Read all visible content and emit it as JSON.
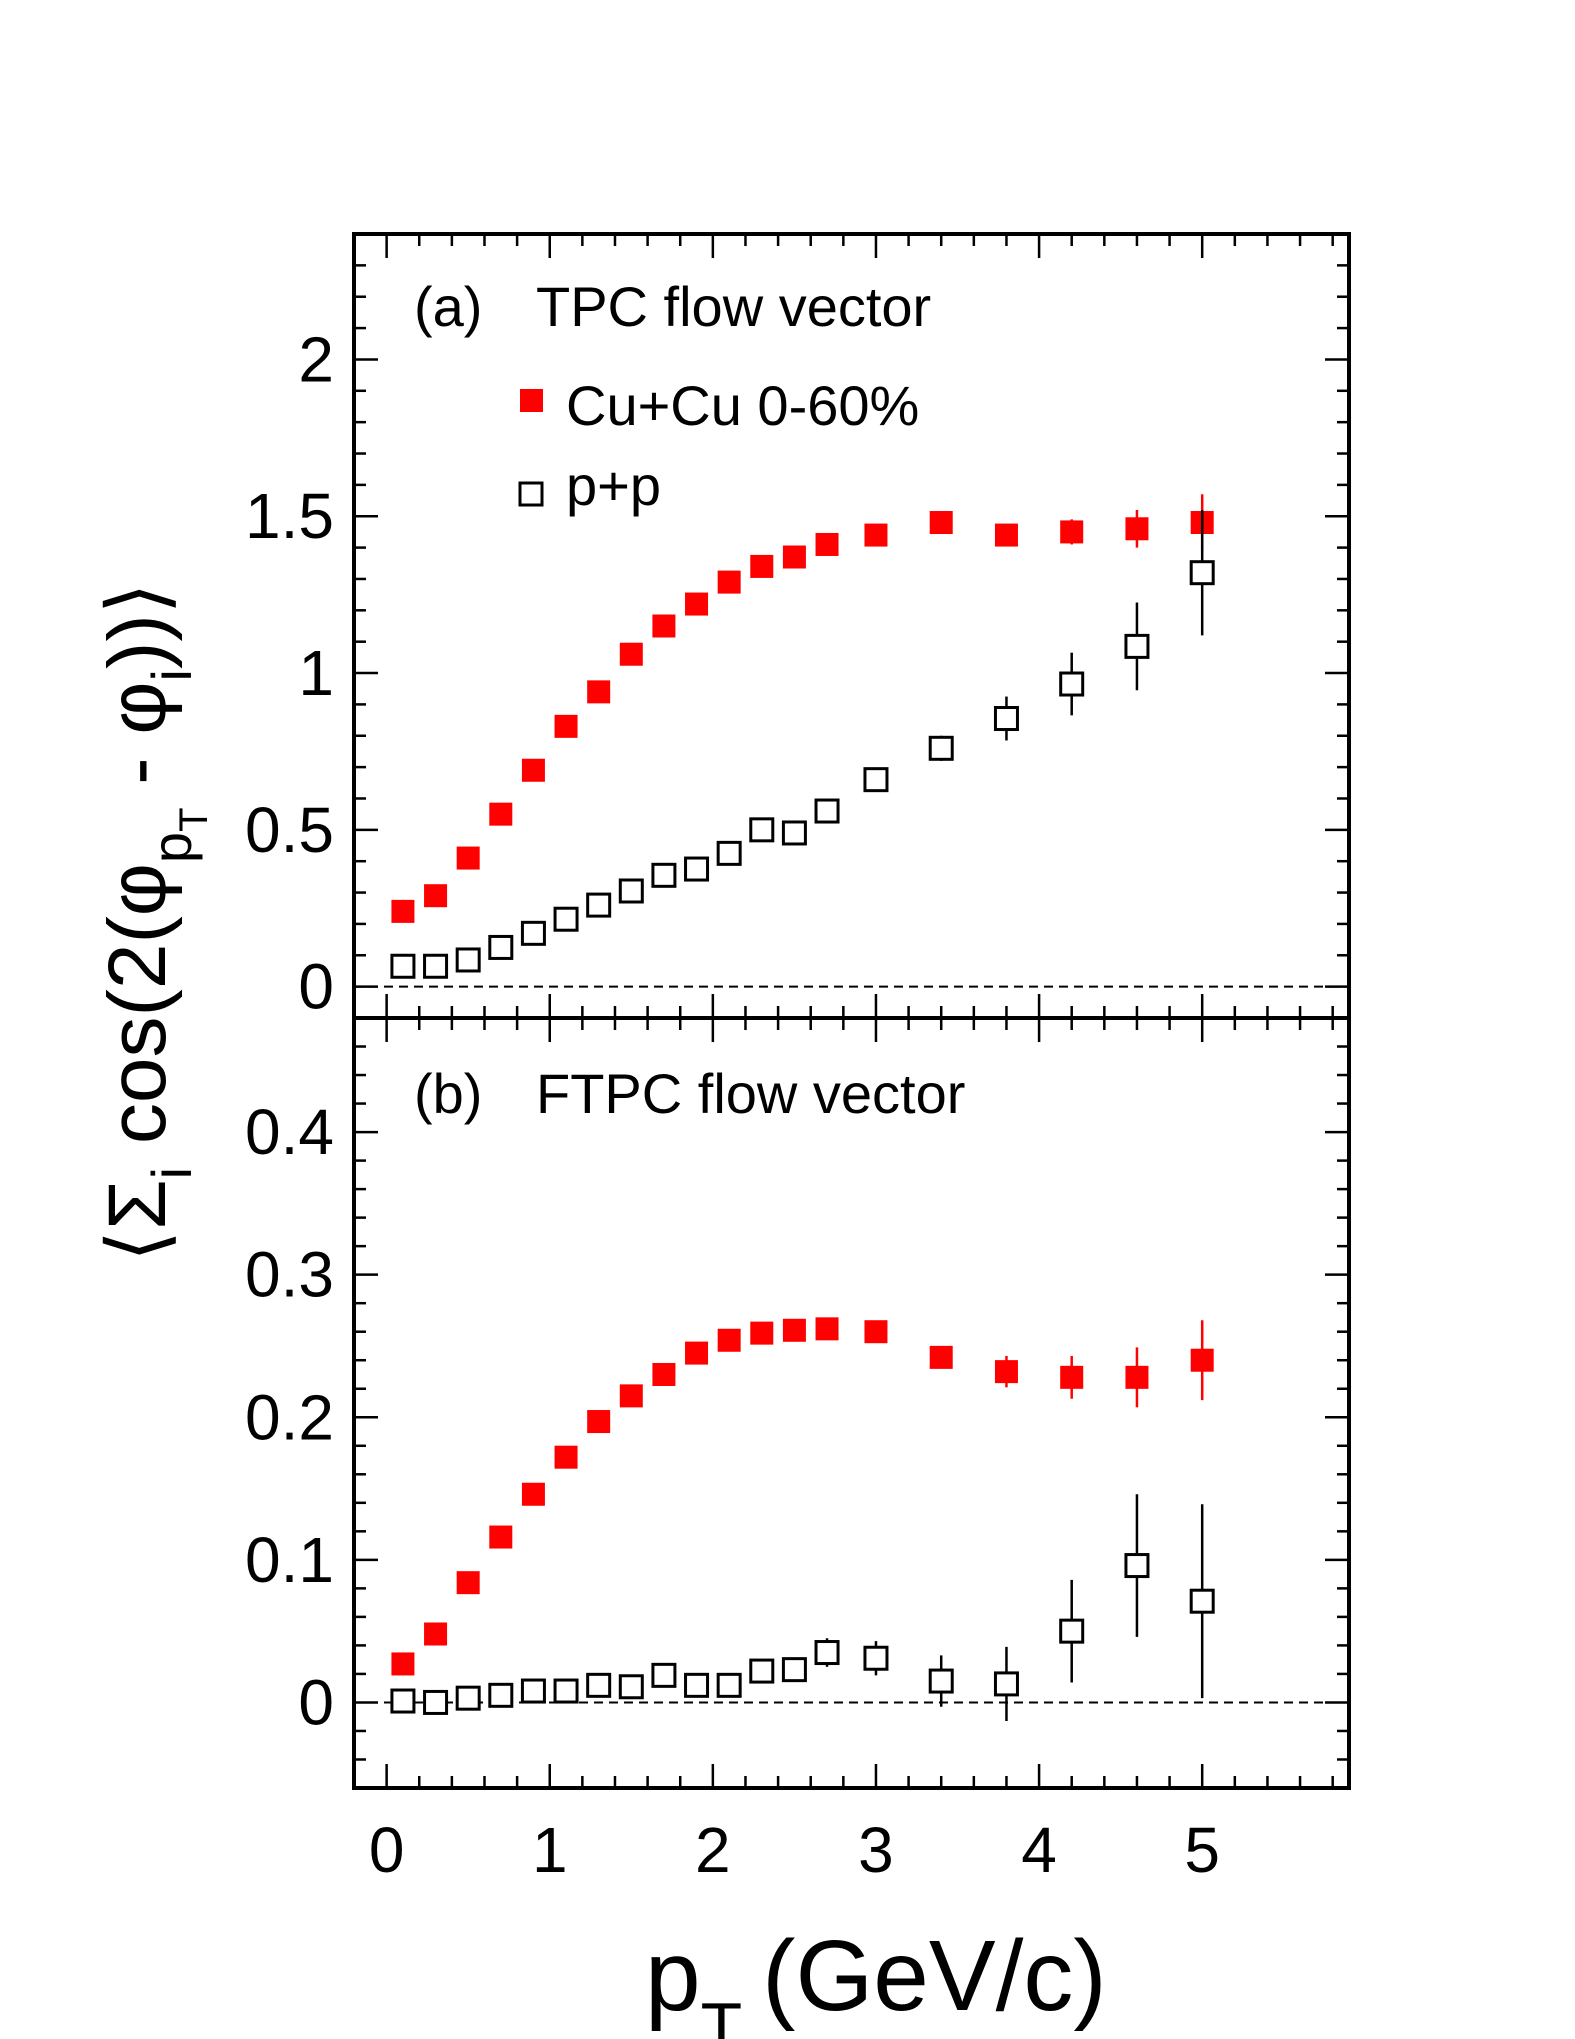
{
  "figure": {
    "xlabel_main": "p",
    "xlabel_sub": "T",
    "xlabel_unit": "(GeV/c)",
    "ylabel": {
      "open": "⟨Σ",
      "sub_i": "i",
      "mid": " cos(2(φ",
      "sub_p": "p",
      "sub_T": "T",
      "minus": " - φ",
      "sub_i2": "i",
      "close": "))⟩"
    }
  },
  "chart_data": [
    {
      "type": "scatter",
      "panel": "(a)",
      "title": "TPC flow vector",
      "xlim": [
        -0.2,
        5.9
      ],
      "ylim": [
        -0.1,
        2.4
      ],
      "yticks": [
        "0",
        "0.5",
        "1",
        "1.5",
        "2"
      ],
      "ytick_values": [
        0,
        0.5,
        1,
        1.5,
        2
      ],
      "reference_line": 0,
      "series": [
        {
          "name": "Cu+Cu 0-60%",
          "marker": "filled-square",
          "color": "#ff0000",
          "x": [
            0.1,
            0.3,
            0.5,
            0.7,
            0.9,
            1.1,
            1.3,
            1.5,
            1.7,
            1.9,
            2.1,
            2.3,
            2.5,
            2.7,
            3.0,
            3.4,
            3.8,
            4.2,
            4.6,
            5.0
          ],
          "y": [
            0.24,
            0.29,
            0.41,
            0.55,
            0.69,
            0.83,
            0.94,
            1.06,
            1.15,
            1.22,
            1.29,
            1.34,
            1.37,
            1.41,
            1.44,
            1.48,
            1.44,
            1.45,
            1.46,
            1.48
          ],
          "err": [
            0.01,
            0.01,
            0.01,
            0.01,
            0.01,
            0.01,
            0.01,
            0.01,
            0.01,
            0.01,
            0.01,
            0.01,
            0.01,
            0.01,
            0.01,
            0.02,
            0.03,
            0.04,
            0.06,
            0.09
          ]
        },
        {
          "name": "p+p",
          "marker": "open-square",
          "color": "#000000",
          "x": [
            0.1,
            0.3,
            0.5,
            0.7,
            0.9,
            1.1,
            1.3,
            1.5,
            1.7,
            1.9,
            2.1,
            2.3,
            2.5,
            2.7,
            3.0,
            3.4,
            3.8,
            4.2,
            4.6,
            5.0
          ],
          "y": [
            0.065,
            0.065,
            0.085,
            0.125,
            0.17,
            0.215,
            0.26,
            0.305,
            0.355,
            0.375,
            0.425,
            0.5,
            0.49,
            0.56,
            0.66,
            0.76,
            0.855,
            0.965,
            1.085,
            1.32
          ],
          "err": [
            0.01,
            0.01,
            0.01,
            0.01,
            0.01,
            0.01,
            0.01,
            0.01,
            0.01,
            0.01,
            0.01,
            0.02,
            0.02,
            0.02,
            0.03,
            0.04,
            0.07,
            0.1,
            0.14,
            0.2
          ]
        }
      ]
    },
    {
      "type": "scatter",
      "panel": "(b)",
      "title": "FTPC flow vector",
      "xlim": [
        -0.2,
        5.9
      ],
      "ylim": [
        -0.06,
        0.48
      ],
      "yticks": [
        "0",
        "0.1",
        "0.2",
        "0.3",
        "0.4"
      ],
      "ytick_values": [
        0,
        0.1,
        0.2,
        0.3,
        0.4
      ],
      "xticks": [
        "0",
        "1",
        "2",
        "3",
        "4",
        "5"
      ],
      "xtick_values": [
        0,
        1,
        2,
        3,
        4,
        5
      ],
      "reference_line": 0,
      "series": [
        {
          "name": "Cu+Cu 0-60%",
          "marker": "filled-square",
          "color": "#ff0000",
          "x": [
            0.1,
            0.3,
            0.5,
            0.7,
            0.9,
            1.1,
            1.3,
            1.5,
            1.7,
            1.9,
            2.1,
            2.3,
            2.5,
            2.7,
            3.0,
            3.4,
            3.8,
            4.2,
            4.6,
            5.0
          ],
          "y": [
            0.027,
            0.048,
            0.084,
            0.116,
            0.146,
            0.172,
            0.197,
            0.215,
            0.23,
            0.245,
            0.254,
            0.259,
            0.261,
            0.262,
            0.26,
            0.242,
            0.232,
            0.228,
            0.228,
            0.24
          ],
          "err": [
            0.002,
            0.002,
            0.002,
            0.002,
            0.002,
            0.002,
            0.002,
            0.002,
            0.002,
            0.002,
            0.002,
            0.003,
            0.003,
            0.003,
            0.004,
            0.007,
            0.011,
            0.015,
            0.021,
            0.028
          ]
        },
        {
          "name": "p+p",
          "marker": "open-square",
          "color": "#000000",
          "x": [
            0.1,
            0.3,
            0.5,
            0.7,
            0.9,
            1.1,
            1.3,
            1.5,
            1.7,
            1.9,
            2.1,
            2.3,
            2.5,
            2.7,
            3.0,
            3.4,
            3.8,
            4.2,
            4.6,
            5.0
          ],
          "y": [
            0.001,
            0.0,
            0.003,
            0.005,
            0.008,
            0.008,
            0.012,
            0.011,
            0.019,
            0.012,
            0.012,
            0.022,
            0.023,
            0.035,
            0.031,
            0.015,
            0.013,
            0.05,
            0.096,
            0.071
          ],
          "err": [
            0.003,
            0.003,
            0.003,
            0.003,
            0.003,
            0.003,
            0.004,
            0.004,
            0.005,
            0.005,
            0.006,
            0.007,
            0.008,
            0.01,
            0.012,
            0.018,
            0.026,
            0.036,
            0.05,
            0.068
          ]
        }
      ]
    }
  ]
}
